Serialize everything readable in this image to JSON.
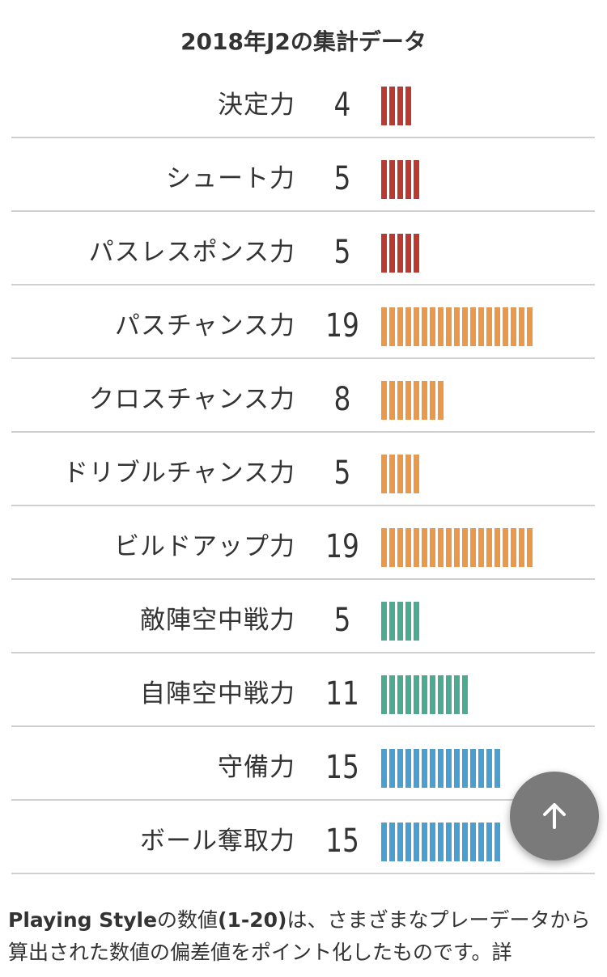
{
  "title": "2018年J2の集計データ",
  "stats": [
    {
      "label": "決定力",
      "value": "4",
      "segments": 4,
      "color": "#b83a30"
    },
    {
      "label": "シュート力",
      "value": "5",
      "segments": 5,
      "color": "#b83a30"
    },
    {
      "label": "パスレスポンス力",
      "value": "5",
      "segments": 5,
      "color": "#b83a30"
    },
    {
      "label": "パスチャンス力",
      "value": "19",
      "segments": 19,
      "color": "#e8994a"
    },
    {
      "label": "クロスチャンス力",
      "value": "8",
      "segments": 8,
      "color": "#e8994a"
    },
    {
      "label": "ドリブルチャンス力",
      "value": "5",
      "segments": 5,
      "color": "#e8994a"
    },
    {
      "label": "ビルドアップ力",
      "value": "19",
      "segments": 19,
      "color": "#e8994a"
    },
    {
      "label": "敵陣空中戦力",
      "value": "5",
      "segments": 5,
      "color": "#4daa90"
    },
    {
      "label": "自陣空中戦力",
      "value": "11",
      "segments": 11,
      "color": "#4daa90"
    },
    {
      "label": "守備力",
      "value": "15",
      "segments": 15,
      "color": "#4a9fd0"
    },
    {
      "label": "ボール奪取力",
      "value": "15",
      "segments": 15,
      "color": "#4a9fd0"
    }
  ],
  "footer": {
    "bold_text": "Playing Style",
    "text1": "の数値",
    "bold_range": "(1-20)",
    "text2": "は、さまざまなプレーデータから算出された数値の偏差値をポイント化したものです。詳"
  },
  "fab": {
    "icon": "arrow-up-icon",
    "color": "#7a7a7a"
  }
}
